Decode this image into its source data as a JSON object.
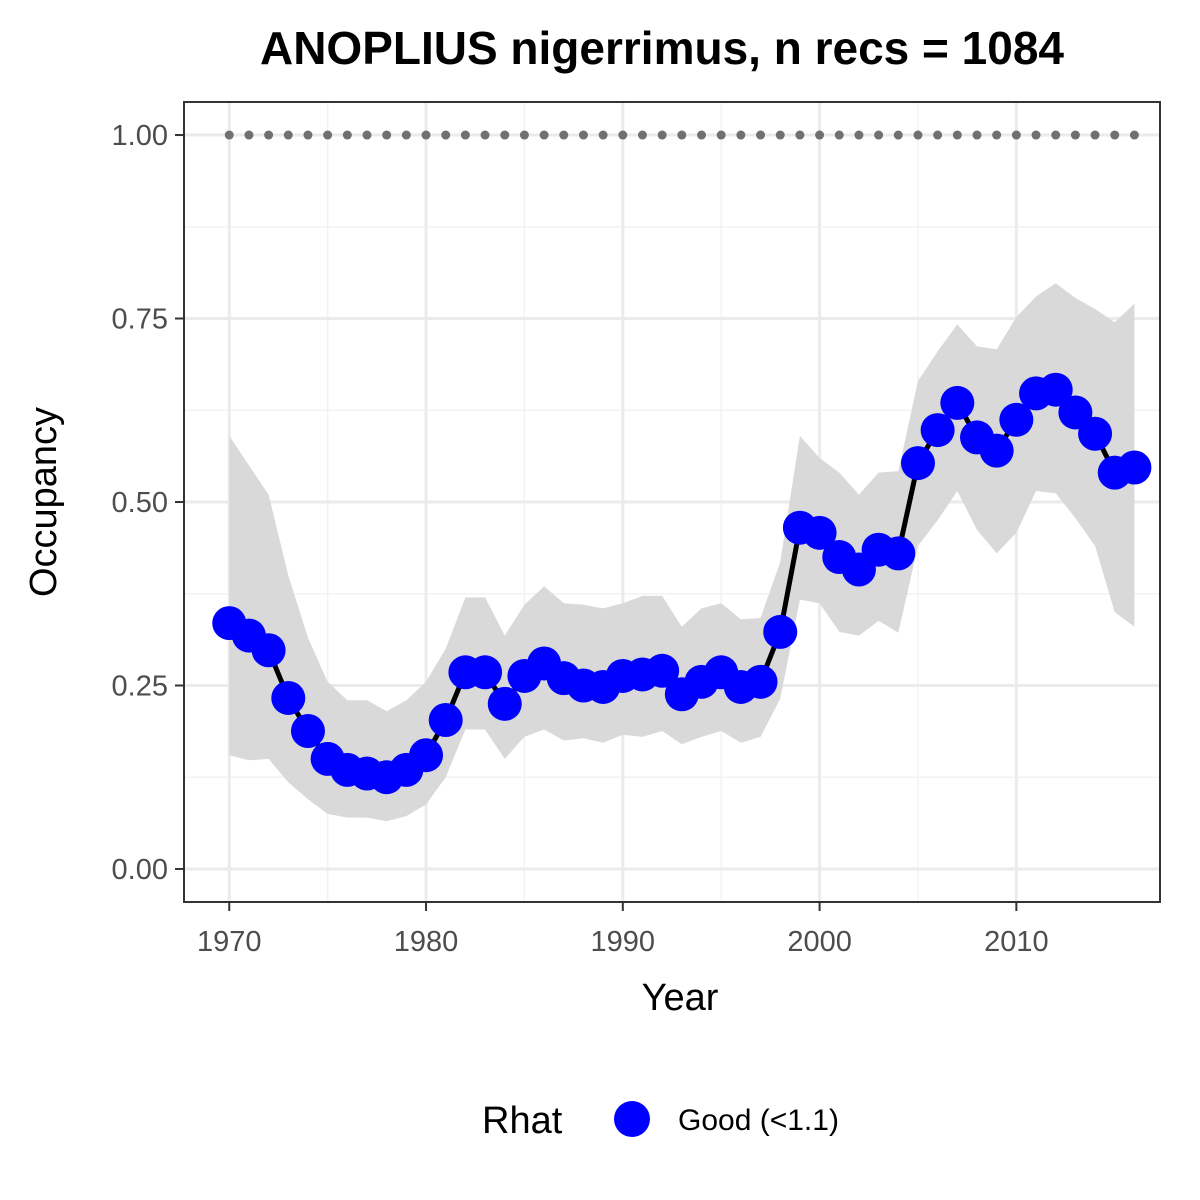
{
  "chart_data": {
    "type": "line",
    "title": "ANOPLIUS nigerrimus, n recs = 1084",
    "xlabel": "Year",
    "ylabel": "Occupancy",
    "xlim": [
      1967.7,
      2017.3
    ],
    "ylim": [
      -0.045,
      1.045
    ],
    "x_ticks": [
      1970,
      1980,
      1990,
      2000,
      2010
    ],
    "x_tick_labels": [
      "1970",
      "1980",
      "1990",
      "2000",
      "2010"
    ],
    "y_ticks": [
      0,
      0.25,
      0.5,
      0.75,
      1.0
    ],
    "y_tick_labels": [
      "0.00",
      "0.25",
      "0.50",
      "0.75",
      "1.00"
    ],
    "grid": true,
    "legend": {
      "title": "Rhat",
      "placement": "bottom",
      "entries": [
        {
          "label": "Good (<1.1)",
          "color": "#0000ff"
        }
      ]
    },
    "colors": {
      "points": "#0000ff",
      "line": "#000000",
      "ribbon": "#d9d9d9",
      "reference_points": "#707070"
    },
    "x": [
      1970,
      1971,
      1972,
      1973,
      1974,
      1975,
      1976,
      1977,
      1978,
      1979,
      1980,
      1981,
      1982,
      1983,
      1984,
      1985,
      1986,
      1987,
      1988,
      1989,
      1990,
      1991,
      1992,
      1993,
      1994,
      1995,
      1996,
      1997,
      1998,
      1999,
      2000,
      2001,
      2002,
      2003,
      2004,
      2005,
      2006,
      2007,
      2008,
      2009,
      2010,
      2011,
      2012,
      2013,
      2014,
      2015,
      2016
    ],
    "series": [
      {
        "values": [
          0.335,
          0.318,
          0.298,
          0.233,
          0.188,
          0.15,
          0.135,
          0.13,
          0.125,
          0.135,
          0.155,
          0.203,
          0.268,
          0.268,
          0.225,
          0.263,
          0.28,
          0.26,
          0.25,
          0.248,
          0.263,
          0.265,
          0.27,
          0.238,
          0.255,
          0.268,
          0.248,
          0.255,
          0.323,
          0.465,
          0.458,
          0.425,
          0.408,
          0.435,
          0.43,
          0.553,
          0.598,
          0.635,
          0.588,
          0.57,
          0.612,
          0.648,
          0.653,
          0.622,
          0.593,
          0.54,
          0.547
        ],
        "lower": [
          0.155,
          0.148,
          0.15,
          0.118,
          0.095,
          0.075,
          0.07,
          0.07,
          0.065,
          0.072,
          0.088,
          0.125,
          0.19,
          0.19,
          0.15,
          0.18,
          0.19,
          0.175,
          0.178,
          0.172,
          0.183,
          0.18,
          0.188,
          0.17,
          0.18,
          0.188,
          0.172,
          0.18,
          0.232,
          0.367,
          0.362,
          0.323,
          0.318,
          0.338,
          0.322,
          0.44,
          0.475,
          0.515,
          0.462,
          0.43,
          0.458,
          0.515,
          0.512,
          0.478,
          0.44,
          0.35,
          0.33
        ],
        "upper": [
          0.59,
          0.55,
          0.51,
          0.4,
          0.315,
          0.255,
          0.23,
          0.23,
          0.215,
          0.23,
          0.255,
          0.3,
          0.37,
          0.37,
          0.318,
          0.36,
          0.385,
          0.362,
          0.36,
          0.355,
          0.362,
          0.372,
          0.372,
          0.33,
          0.355,
          0.362,
          0.34,
          0.342,
          0.418,
          0.59,
          0.56,
          0.54,
          0.51,
          0.54,
          0.542,
          0.665,
          0.705,
          0.742,
          0.712,
          0.708,
          0.752,
          0.78,
          0.798,
          0.778,
          0.763,
          0.745,
          0.77
        ],
        "reference": 1.0
      }
    ]
  }
}
